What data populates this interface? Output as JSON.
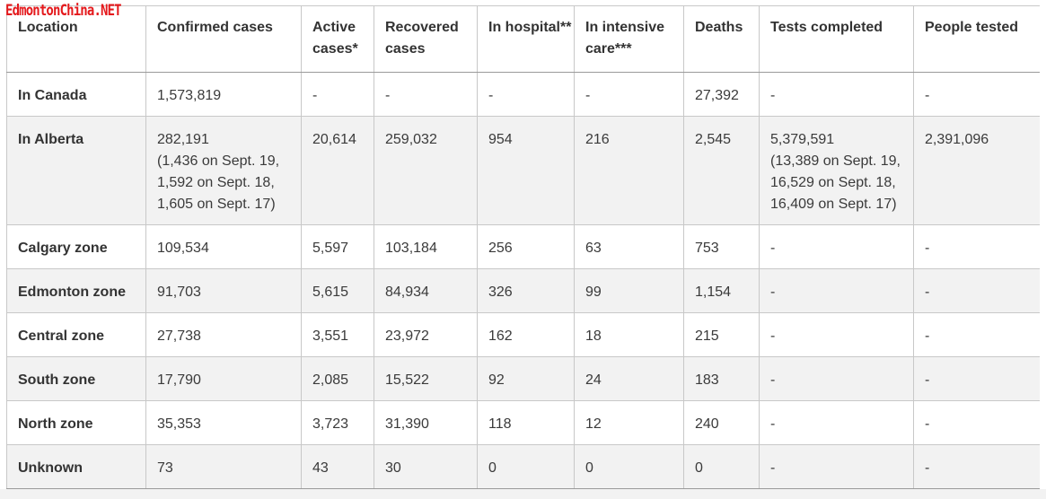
{
  "watermark": "EdmontonChina.NET",
  "table": {
    "headers": [
      "Location",
      "Confirmed cases",
      "Active cases*",
      "Recovered cases",
      "In hospital**",
      "In intensive care***",
      "Deaths",
      "Tests completed",
      "People tested"
    ],
    "rows": [
      [
        "In Canada",
        "1,573,819",
        "-",
        "-",
        "-",
        "-",
        "27,392",
        "-",
        "-"
      ],
      [
        "In Alberta",
        "282,191\n(1,436 on Sept. 19,\n1,592 on Sept. 18,\n1,605 on Sept. 17)",
        "20,614",
        "259,032",
        "954",
        "216",
        "2,545",
        "5,379,591\n(13,389 on Sept. 19,\n16,529 on Sept. 18,\n16,409 on Sept. 17)",
        "2,391,096"
      ],
      [
        "Calgary zone",
        "109,534",
        "5,597",
        "103,184",
        "256",
        "63",
        "753",
        "-",
        "-"
      ],
      [
        "Edmonton zone",
        "91,703",
        "5,615",
        "84,934",
        "326",
        "99",
        "1,154",
        "-",
        "-"
      ],
      [
        "Central zone",
        "27,738",
        "3,551",
        "23,972",
        "162",
        "18",
        "215",
        "-",
        "-"
      ],
      [
        "South zone",
        "17,790",
        "2,085",
        "15,522",
        "92",
        "24",
        "183",
        "-",
        "-"
      ],
      [
        "North zone",
        "35,353",
        "3,723",
        "31,390",
        "118",
        "12",
        "240",
        "-",
        "-"
      ],
      [
        "Unknown",
        "73",
        "43",
        "30",
        "0",
        "0",
        "0",
        "-",
        "-"
      ]
    ]
  }
}
